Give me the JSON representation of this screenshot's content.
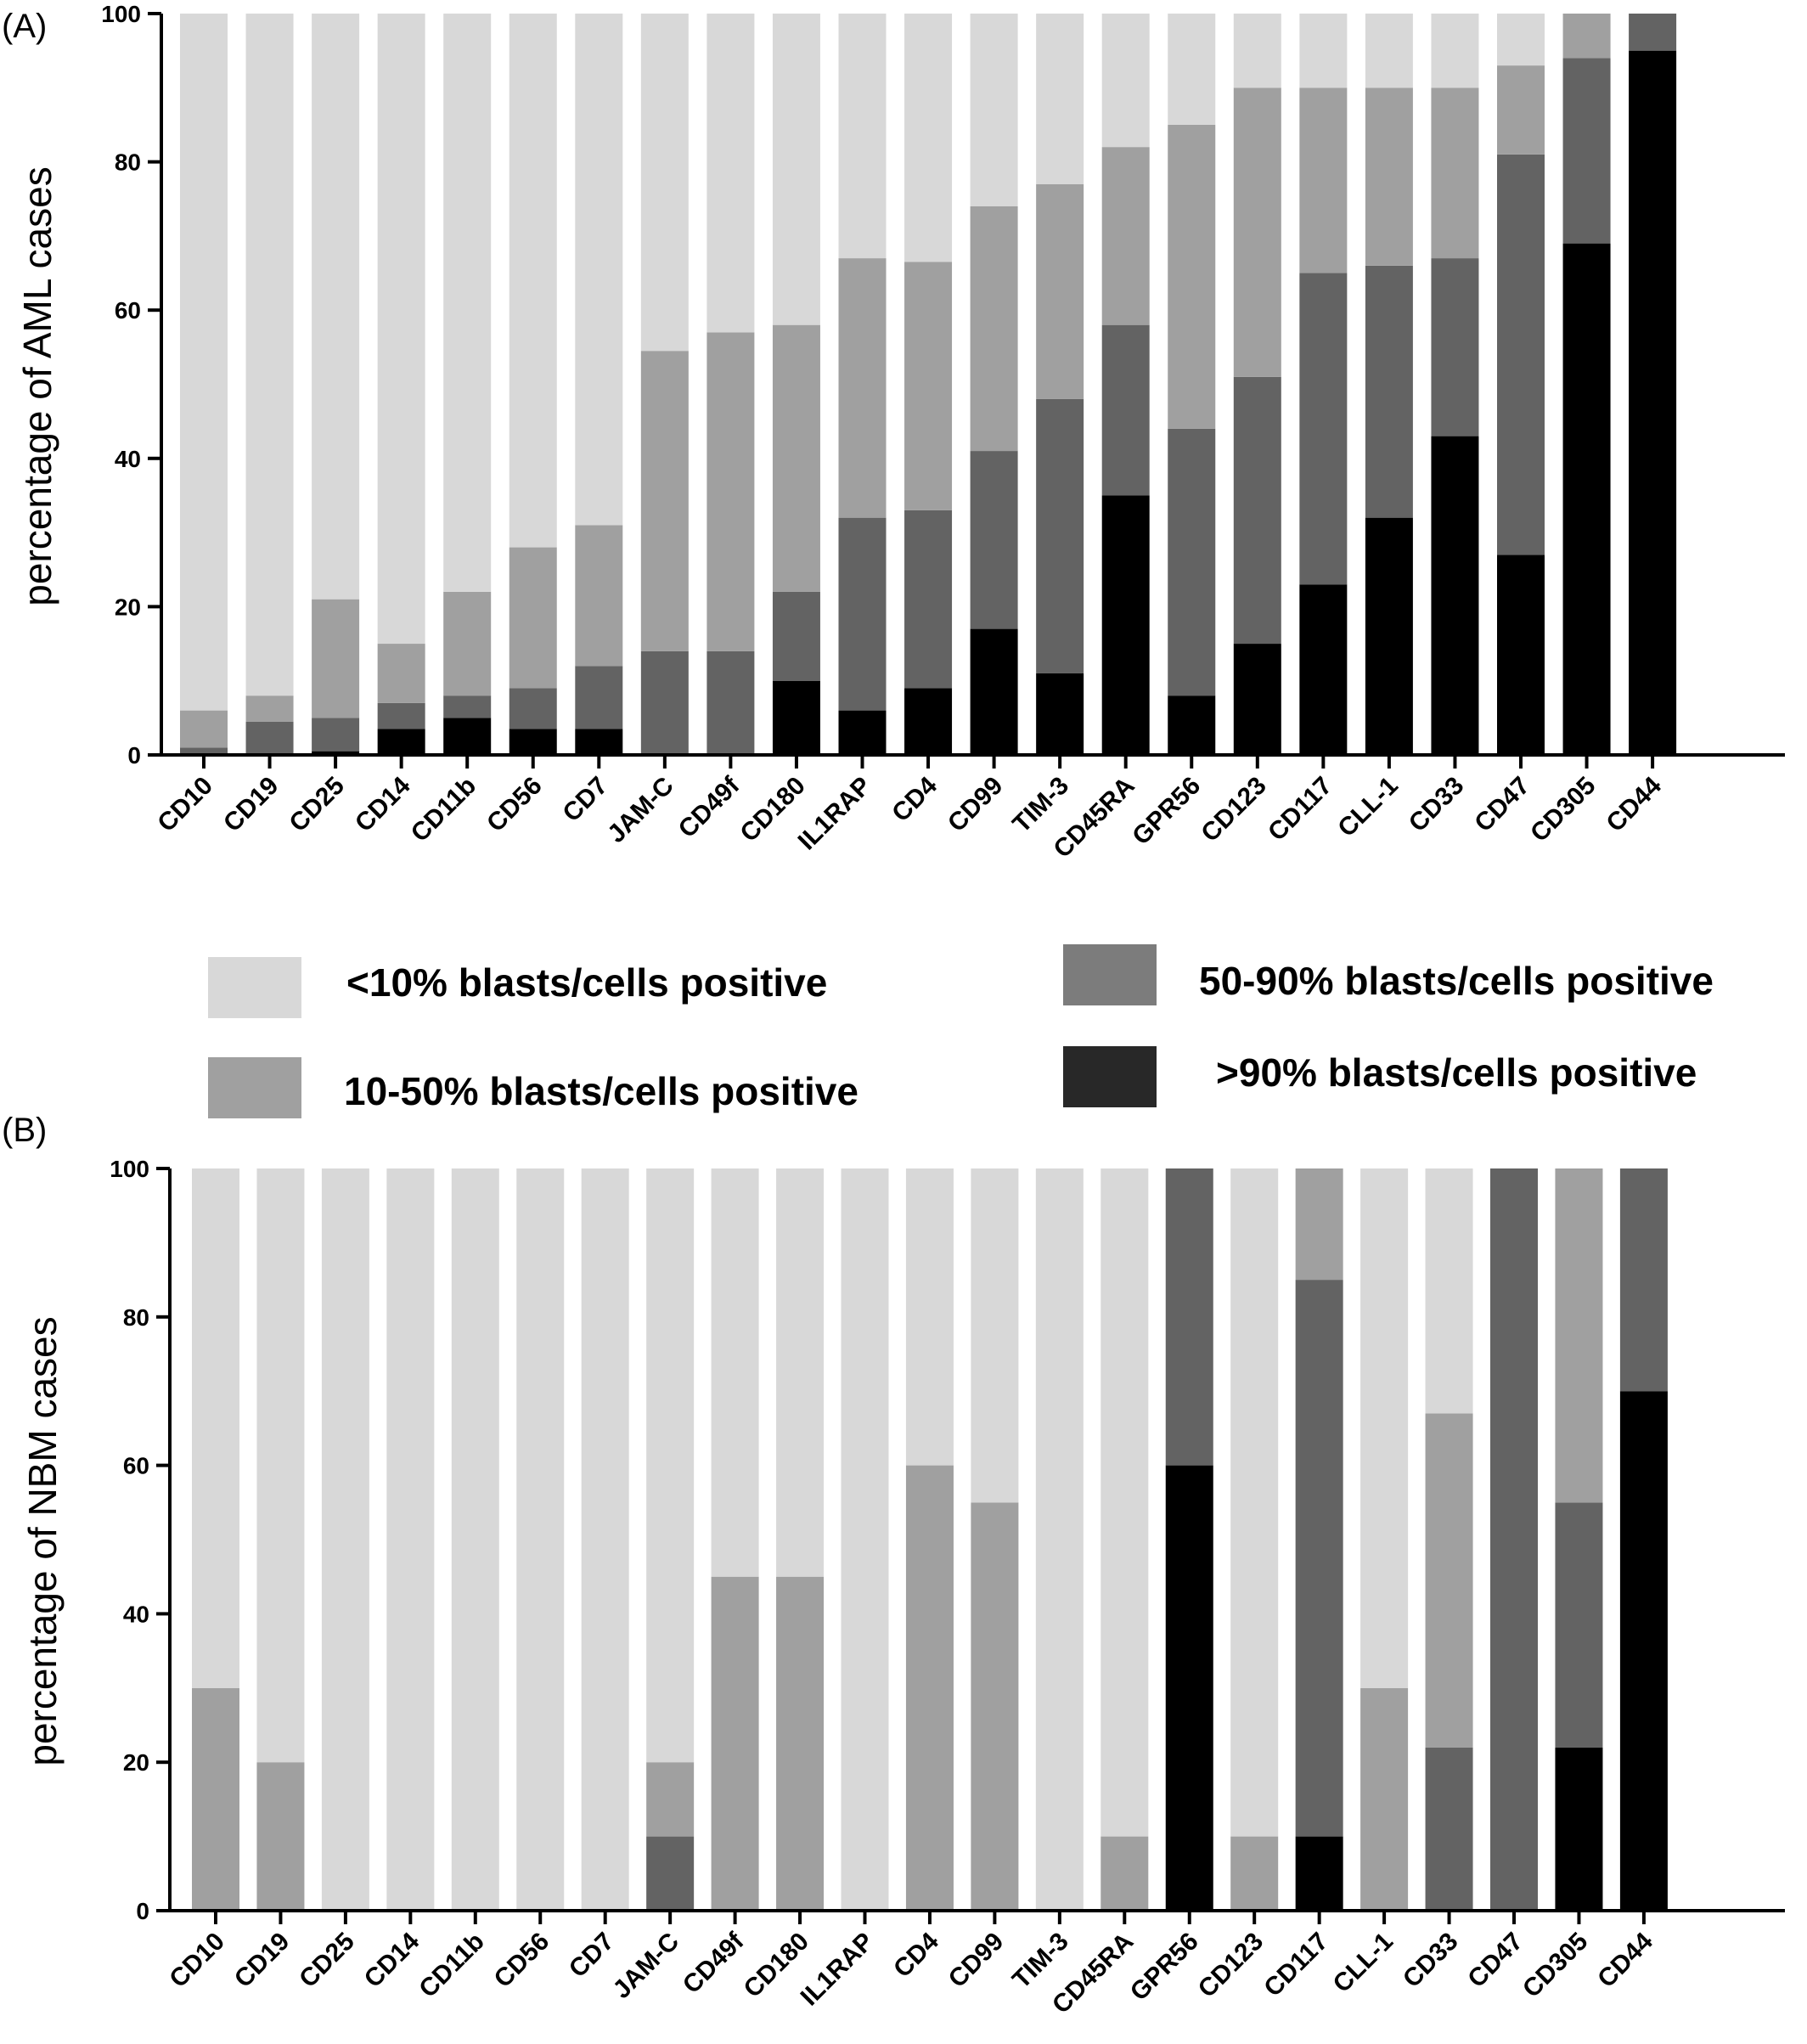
{
  "chart_data": [
    {
      "type": "bar",
      "stacked": true,
      "panel_label": "(A)",
      "title": "",
      "xlabel": "",
      "ylabel": "percentage of AML cases",
      "ylim": [
        0,
        100
      ],
      "yticks": [
        0,
        20,
        40,
        60,
        80,
        100
      ],
      "grid": false,
      "categories": [
        "CD10",
        "CD19",
        "CD25",
        "CD14",
        "CD11b",
        "CD56",
        "CD7",
        "JAM-C",
        "CD49f",
        "CD180",
        "IL1RAP",
        "CD4",
        "CD99",
        "TIM-3",
        "CD45RA",
        "GPR56",
        "CD123",
        "CD117",
        "CLL-1",
        "CD33",
        "CD47",
        "CD305",
        "CD44"
      ],
      "series": [
        {
          "name": ">90% blasts/cells positive",
          "color": "#000000",
          "values": [
            0,
            0,
            0.5,
            3.5,
            5,
            3.5,
            3.5,
            0,
            0,
            10,
            6,
            9,
            17,
            11,
            35,
            8,
            15,
            23,
            32,
            43,
            27,
            69,
            95
          ]
        },
        {
          "name": "50-90% blasts/cells positive",
          "color": "#636363",
          "values": [
            1,
            4.5,
            4.5,
            3.5,
            3,
            5.5,
            8.5,
            14,
            14,
            12,
            26,
            24,
            24,
            37,
            23,
            36,
            36,
            42,
            34,
            24,
            54,
            25,
            5
          ]
        },
        {
          "name": "10-50% blasts/cells positive",
          "color": "#a0a0a0",
          "values": [
            5,
            3.5,
            16,
            8,
            14,
            19,
            19,
            40.5,
            43,
            36,
            35,
            33.5,
            33,
            29,
            24,
            41,
            39,
            25,
            24,
            23,
            12,
            6,
            0
          ]
        },
        {
          "name": "<10% blasts/cells positive",
          "color": "#d8d8d8",
          "values": [
            94,
            92,
            79,
            85,
            78,
            72,
            69,
            45.5,
            43,
            42,
            33,
            33.5,
            26,
            23,
            18,
            15,
            10,
            10,
            10,
            10,
            7,
            0,
            0
          ]
        }
      ]
    },
    {
      "type": "bar",
      "stacked": true,
      "panel_label": "(B)",
      "title": "",
      "xlabel": "",
      "ylabel": "percentage of NBM cases",
      "ylim": [
        0,
        100
      ],
      "yticks": [
        0,
        20,
        40,
        60,
        80,
        100
      ],
      "grid": false,
      "categories": [
        "CD10",
        "CD19",
        "CD25",
        "CD14",
        "CD11b",
        "CD56",
        "CD7",
        "JAM-C",
        "CD49f",
        "CD180",
        "IL1RAP",
        "CD4",
        "CD99",
        "TIM-3",
        "CD45RA",
        "GPR56",
        "CD123",
        "CD117",
        "CLL-1",
        "CD33",
        "CD47",
        "CD305",
        "CD44"
      ],
      "series": [
        {
          "name": ">90% blasts/cells positive",
          "color": "#000000",
          "values": [
            0,
            0,
            0,
            0,
            0,
            0,
            0,
            0,
            0,
            0,
            0,
            0,
            0,
            0,
            0,
            60,
            0,
            10,
            0,
            0,
            0,
            22,
            70
          ]
        },
        {
          "name": "50-90% blasts/cells positive",
          "color": "#636363",
          "values": [
            0,
            0,
            0,
            0,
            0,
            0,
            0,
            10,
            0,
            0,
            0,
            0,
            0,
            0,
            0,
            40,
            0,
            75,
            0,
            22,
            100,
            33,
            30
          ]
        },
        {
          "name": "10-50% blasts/cells positive",
          "color": "#a0a0a0",
          "values": [
            30,
            20,
            0,
            0,
            0,
            0,
            0,
            10,
            45,
            45,
            0,
            60,
            55,
            0,
            10,
            0,
            10,
            15,
            30,
            45,
            0,
            45,
            0
          ]
        },
        {
          "name": "<10% blasts/cells positive",
          "color": "#d8d8d8",
          "values": [
            70,
            80,
            100,
            100,
            100,
            100,
            100,
            80,
            55,
            55,
            100,
            40,
            45,
            100,
            90,
            0,
            90,
            0,
            70,
            33,
            0,
            0,
            0
          ]
        }
      ]
    }
  ],
  "legend": {
    "placement": "between-panels",
    "items": [
      {
        "label": "<10% blasts/cells positive",
        "color": "#d8d8d8"
      },
      {
        "label": "10-50% blasts/cells positive",
        "color": "#a0a0a0"
      },
      {
        "label": "50-90% blasts/cells positive",
        "color": "#7c7c7c"
      },
      {
        "label": ">90% blasts/cells positive",
        "color": "#282828"
      }
    ]
  }
}
